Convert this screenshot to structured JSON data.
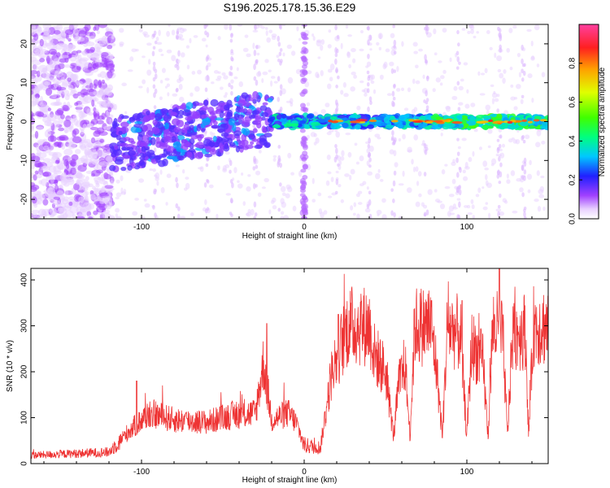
{
  "title": "S196.2025.178.15.36.E29",
  "chart_data": [
    {
      "type": "heatmap",
      "xlabel": "Height of straight line (km)",
      "ylabel": "Frequency (Hz)",
      "xlim": [
        -168,
        150
      ],
      "ylim": [
        -25,
        25
      ],
      "xticks": [
        -100,
        0,
        100
      ],
      "yticks": [
        -20,
        -10,
        0,
        10,
        20
      ],
      "colorbar": {
        "label": "Normalized spectral amplitude",
        "range": [
          0,
          1
        ],
        "ticks": [
          "0.0",
          "0.2",
          "0.4",
          "0.6",
          "0.8"
        ],
        "tick_values": [
          0.0,
          0.2,
          0.4,
          0.6,
          0.8
        ]
      },
      "features": [
        {
          "x_range": [
            -168,
            -118
          ],
          "description_level": 0.08,
          "spread_hz": 25
        },
        {
          "x_range": [
            -118,
            -20
          ],
          "description_level": 0.15,
          "center_hz": 0
        },
        {
          "x_range": [
            -20,
            150
          ],
          "description_level": 0.35,
          "center_hz": 0
        }
      ]
    },
    {
      "type": "line",
      "xlabel": "Height of straight line (km)",
      "ylabel": "SNR (10 * v/v)",
      "xlim": [
        -168,
        150
      ],
      "ylim": [
        0,
        425
      ],
      "xticks": [
        -100,
        0,
        100
      ],
      "yticks": [
        0,
        100,
        200,
        300,
        400
      ],
      "color": "#ee3333",
      "series_profile": [
        {
          "x": -168,
          "y": 18
        },
        {
          "x": -140,
          "y": 22
        },
        {
          "x": -120,
          "y": 25
        },
        {
          "x": -108,
          "y": 70
        },
        {
          "x": -95,
          "y": 110
        },
        {
          "x": -80,
          "y": 95
        },
        {
          "x": -60,
          "y": 90
        },
        {
          "x": -45,
          "y": 105
        },
        {
          "x": -30,
          "y": 110
        },
        {
          "x": -25,
          "y": 220
        },
        {
          "x": -20,
          "y": 95
        },
        {
          "x": -10,
          "y": 110
        },
        {
          "x": -5,
          "y": 90
        },
        {
          "x": 0,
          "y": 40
        },
        {
          "x": 10,
          "y": 35
        },
        {
          "x": 17,
          "y": 200
        },
        {
          "x": 27,
          "y": 300
        },
        {
          "x": 40,
          "y": 300
        },
        {
          "x": 43,
          "y": 240
        },
        {
          "x": 50,
          "y": 200
        },
        {
          "x": 55,
          "y": 60
        },
        {
          "x": 58,
          "y": 170
        },
        {
          "x": 62,
          "y": 220
        },
        {
          "x": 65,
          "y": 60
        },
        {
          "x": 68,
          "y": 300
        },
        {
          "x": 78,
          "y": 300
        },
        {
          "x": 81,
          "y": 220
        },
        {
          "x": 85,
          "y": 60
        },
        {
          "x": 88,
          "y": 300
        },
        {
          "x": 96,
          "y": 280
        },
        {
          "x": 100,
          "y": 60
        },
        {
          "x": 103,
          "y": 260
        },
        {
          "x": 110,
          "y": 220
        },
        {
          "x": 113,
          "y": 60
        },
        {
          "x": 116,
          "y": 300
        },
        {
          "x": 122,
          "y": 280
        },
        {
          "x": 125,
          "y": 60
        },
        {
          "x": 128,
          "y": 280
        },
        {
          "x": 136,
          "y": 290
        },
        {
          "x": 138,
          "y": 60
        },
        {
          "x": 141,
          "y": 300
        },
        {
          "x": 150,
          "y": 300
        }
      ],
      "spikes": [
        {
          "x": -103,
          "y": 180
        },
        {
          "x": -23,
          "y": 305
        },
        {
          "x": 21,
          "y": 325
        },
        {
          "x": 97,
          "y": 355
        },
        {
          "x": 120,
          "y": 425
        }
      ]
    }
  ]
}
